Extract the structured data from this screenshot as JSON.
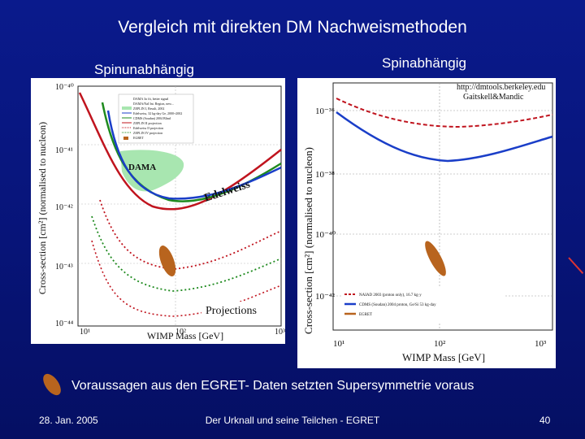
{
  "slide": {
    "title": "Vergleich mit direkten DM Nachweismethoden",
    "label_left": "Spinunabhängig",
    "label_right": "Spinabhängig",
    "bottom_text": "Voraussagen aus den EGRET- Daten setzten Supersymmetrie  voraus",
    "footer_date": "28. Jan. 2005",
    "footer_center": "Der Urknall und seine Teilchen - EGRET",
    "page_number": "40"
  },
  "left_plot": {
    "ylabel": "Cross-section [cm²] (normalised to nucleon)",
    "xlabel": "WIMP Mass [GeV]",
    "y_ticks": [
      "10⁻⁴⁰",
      "10⁻⁴¹",
      "10⁻⁴²",
      "10⁻⁴³",
      "10⁻⁴⁴"
    ],
    "x_ticks": [
      "10¹",
      "10²",
      "10³"
    ],
    "dama_label": "DAMA",
    "edelweiss_label": "Edelweiss",
    "projections_label": "Projections",
    "legend_lines": [
      "DAMA 3σ fit, better signal",
      "DAMA/NaI Int. Region, new...",
      "ZEPLIN I, Result, 2002",
      "Edelweiss, 32 kg-day Ge, 2000+2002",
      "CDMS (Soudan) 2004 Blind",
      "ZEPLIN II projection",
      "Edelweiss II projection",
      "ZEPLIN IV projection",
      "EGRET"
    ],
    "colors": {
      "red": "#c0141e",
      "green": "#1e8a1e",
      "blue": "#1a3ec8",
      "dama_region": "#a8e6b0",
      "egret": "#b8641e"
    }
  },
  "right_plot": {
    "ylabel": "Cross-section [cm²] (normalised to nucleon)",
    "xlabel": "WIMP Mass [GeV]",
    "url": "http://dmtools.berkeley.edu",
    "authors": "Gaitskell&Mandic",
    "y_ticks": [
      "10⁻³⁶",
      "10⁻³⁸",
      "10⁻⁴⁰",
      "10⁻⁴²"
    ],
    "x_ticks": [
      "10¹",
      "10²",
      "10³"
    ],
    "legend": [
      "NAIAD 2003 (proton only), 16.7 kg·y",
      "CDMS (Soudan) 2004 proton, Ge/Si 53 kg·day",
      "EGRET"
    ]
  }
}
